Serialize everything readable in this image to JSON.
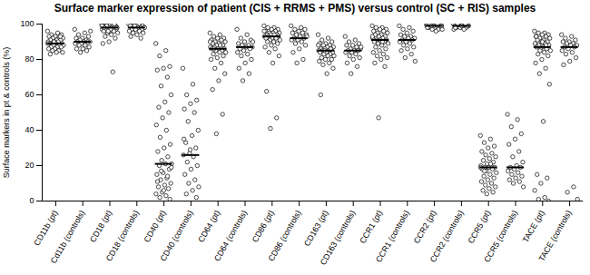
{
  "chart_data": {
    "type": "scatter",
    "title": "Surface marker expression of patient (CIS + RRMS + PMS) versus control (SC + RIS) samples",
    "y_label": "Surface markers in pt & controls (%)",
    "categories": [
      "CD11b (pt)",
      "Cd11b (controls)",
      "CD18 (pt)",
      "CD18 (controls)",
      "CD40 (pt)",
      "CD40 (controls)",
      "CD64 (pt)",
      "CD64 (controls)",
      "CD86 (pt)",
      "CD86 (controls)",
      "CD163 (pt)",
      "CD163 (controls)",
      "CCR1 (pt)",
      "CCR1 (controls)",
      "CCR2 (pt)",
      "CCR2 (controls)",
      "CCR5 (pt)",
      "CCR5 (controls)",
      "TACE (pt)",
      "TACE (controls)"
    ],
    "points": [
      [
        96,
        95,
        94,
        94,
        93,
        93,
        92,
        92,
        92,
        91,
        91,
        91,
        90,
        90,
        90,
        89,
        89,
        89,
        89,
        88,
        88,
        88,
        87,
        87,
        87,
        86,
        86,
        85,
        85,
        84,
        84,
        83,
        93,
        90,
        89
      ],
      [
        97,
        95,
        94,
        93,
        92,
        92,
        91,
        91,
        90,
        90,
        90,
        90,
        89,
        89,
        88,
        88,
        87,
        86,
        86,
        85,
        84,
        96
      ],
      [
        100,
        100,
        99,
        99,
        99,
        99,
        99,
        98,
        98,
        98,
        98,
        98,
        98,
        97,
        97,
        97,
        97,
        96,
        96,
        96,
        95,
        95,
        94,
        93,
        92,
        90,
        89,
        73,
        99,
        98,
        97,
        98,
        100,
        96,
        99
      ],
      [
        100,
        100,
        99,
        99,
        99,
        99,
        98,
        98,
        98,
        98,
        97,
        97,
        97,
        96,
        96,
        95,
        95,
        94,
        93,
        92,
        99,
        98
      ],
      [
        89,
        85,
        82,
        76,
        75,
        74,
        70,
        65,
        60,
        56,
        53,
        50,
        47,
        43,
        40,
        36,
        32,
        30,
        28,
        25,
        23,
        21,
        21,
        20,
        18,
        16,
        15,
        13,
        12,
        10,
        9,
        8,
        7,
        5,
        4,
        3,
        2,
        1,
        6,
        11,
        14,
        17,
        19
      ],
      [
        75,
        66,
        60,
        57,
        55,
        52,
        50,
        45,
        40,
        37,
        33,
        30,
        27,
        26,
        25,
        22,
        20,
        18,
        15,
        12,
        10,
        8,
        6,
        4,
        2,
        29,
        35
      ],
      [
        95,
        94,
        93,
        92,
        92,
        91,
        91,
        90,
        90,
        89,
        89,
        88,
        88,
        87,
        87,
        87,
        86,
        86,
        86,
        85,
        85,
        84,
        84,
        83,
        82,
        81,
        80,
        78,
        75,
        72,
        68,
        63,
        49,
        38,
        90,
        88,
        86
      ],
      [
        97,
        94,
        92,
        91,
        90,
        89,
        88,
        88,
        87,
        87,
        86,
        86,
        85,
        84,
        83,
        82,
        80,
        78,
        75,
        72,
        68,
        90
      ],
      [
        99,
        98,
        98,
        97,
        97,
        96,
        96,
        95,
        95,
        95,
        94,
        94,
        94,
        93,
        93,
        93,
        93,
        92,
        92,
        92,
        91,
        91,
        90,
        90,
        89,
        88,
        87,
        86,
        84,
        82,
        78,
        62,
        47,
        41,
        96,
        94
      ],
      [
        99,
        98,
        97,
        97,
        96,
        95,
        95,
        94,
        94,
        93,
        92,
        92,
        91,
        91,
        90,
        89,
        88,
        86,
        84,
        80,
        78,
        93
      ],
      [
        94,
        92,
        91,
        90,
        89,
        89,
        88,
        88,
        87,
        87,
        86,
        86,
        86,
        85,
        85,
        85,
        84,
        84,
        84,
        83,
        83,
        82,
        82,
        81,
        80,
        80,
        79,
        78,
        77,
        75,
        72,
        60,
        86,
        85,
        88
      ],
      [
        93,
        91,
        90,
        89,
        88,
        88,
        87,
        86,
        86,
        85,
        85,
        85,
        84,
        84,
        83,
        82,
        81,
        80,
        78,
        76,
        72,
        87
      ],
      [
        99,
        98,
        98,
        97,
        97,
        96,
        96,
        95,
        95,
        94,
        94,
        93,
        93,
        92,
        92,
        91,
        91,
        91,
        90,
        90,
        89,
        89,
        88,
        87,
        86,
        85,
        84,
        83,
        82,
        81,
        80,
        78,
        76,
        47,
        93,
        90
      ],
      [
        99,
        98,
        97,
        96,
        95,
        94,
        93,
        93,
        92,
        92,
        91,
        91,
        90,
        90,
        89,
        88,
        87,
        86,
        85,
        83,
        81,
        79
      ],
      [
        100,
        100,
        100,
        100,
        100,
        99,
        99,
        99,
        99,
        99,
        99,
        99,
        99,
        99,
        98,
        98,
        98,
        98,
        98,
        97,
        97,
        97,
        96,
        100,
        99,
        99,
        98,
        100,
        99,
        99
      ],
      [
        100,
        100,
        100,
        99,
        99,
        99,
        99,
        99,
        99,
        98,
        98,
        98,
        98,
        97,
        97,
        100,
        99,
        99,
        98,
        100
      ],
      [
        37,
        35,
        33,
        31,
        30,
        28,
        27,
        26,
        25,
        24,
        23,
        22,
        21,
        20,
        20,
        19,
        19,
        19,
        18,
        18,
        17,
        16,
        15,
        14,
        13,
        12,
        11,
        10,
        9,
        8,
        7,
        6,
        5,
        4,
        19,
        21,
        17
      ],
      [
        49,
        46,
        42,
        38,
        35,
        32,
        28,
        25,
        22,
        20,
        19,
        19,
        18,
        17,
        16,
        15,
        14,
        13,
        12,
        11,
        10,
        8
      ],
      [
        96,
        95,
        95,
        94,
        94,
        93,
        93,
        92,
        92,
        91,
        91,
        90,
        90,
        89,
        89,
        88,
        88,
        87,
        87,
        86,
        86,
        85,
        84,
        83,
        82,
        80,
        78,
        75,
        72,
        66,
        45,
        15,
        13,
        10,
        6,
        2,
        1,
        0,
        90,
        93,
        88,
        85
      ],
      [
        94,
        93,
        92,
        91,
        90,
        90,
        89,
        89,
        88,
        88,
        87,
        87,
        86,
        85,
        84,
        83,
        81,
        79,
        77,
        8,
        5,
        1
      ]
    ],
    "medians": [
      89,
      90,
      98,
      98,
      21,
      26,
      86,
      87,
      93,
      92,
      85,
      85,
      91,
      91,
      99,
      99,
      19,
      19,
      87,
      87
    ],
    "ylim": [
      0,
      100
    ],
    "yticks": [
      0,
      20,
      40,
      60,
      80,
      100
    ],
    "marker": "circle",
    "color": "#000000"
  }
}
